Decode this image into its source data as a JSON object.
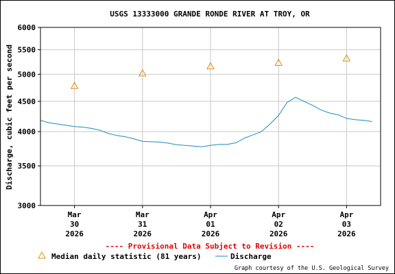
{
  "chart_data": {
    "type": "line",
    "title": "USGS 13333000 GRANDE RONDE RIVER AT TROY, OR",
    "ylabel": "Discharge, cubic feet per second",
    "xlabel": "",
    "y_scale": "log",
    "ylim": [
      3000,
      6000
    ],
    "y_ticks": [
      3000,
      3500,
      4000,
      4500,
      5000,
      5500,
      6000
    ],
    "x_range": [
      "2026-03-29T12:00",
      "2026-04-03T12:00"
    ],
    "x_ticks": [
      {
        "date": "2026-03-30T00:00",
        "label": [
          "Mar",
          "30",
          "2026"
        ]
      },
      {
        "date": "2026-03-31T00:00",
        "label": [
          "Mar",
          "31",
          "2026"
        ]
      },
      {
        "date": "2026-04-01T00:00",
        "label": [
          "Apr",
          "01",
          "2026"
        ]
      },
      {
        "date": "2026-04-02T00:00",
        "label": [
          "Apr",
          "02",
          "2026"
        ]
      },
      {
        "date": "2026-04-03T00:00",
        "label": [
          "Apr",
          "03",
          "2026"
        ]
      }
    ],
    "grid": true,
    "series": [
      {
        "name": "Discharge",
        "color": "#1a8ac0",
        "points": [
          [
            "2026-03-29T12:00",
            4180
          ],
          [
            "2026-03-29T15:00",
            4140
          ],
          [
            "2026-03-29T18:00",
            4120
          ],
          [
            "2026-03-29T21:00",
            4100
          ],
          [
            "2026-03-30T00:00",
            4080
          ],
          [
            "2026-03-30T03:00",
            4070
          ],
          [
            "2026-03-30T06:00",
            4050
          ],
          [
            "2026-03-30T09:00",
            4020
          ],
          [
            "2026-03-30T12:00",
            3970
          ],
          [
            "2026-03-30T15:00",
            3940
          ],
          [
            "2026-03-30T18:00",
            3920
          ],
          [
            "2026-03-30T21:00",
            3890
          ],
          [
            "2026-03-31T00:00",
            3850
          ],
          [
            "2026-03-31T03:00",
            3845
          ],
          [
            "2026-03-31T06:00",
            3840
          ],
          [
            "2026-03-31T09:00",
            3825
          ],
          [
            "2026-03-31T12:00",
            3800
          ],
          [
            "2026-03-31T15:00",
            3790
          ],
          [
            "2026-03-31T18:00",
            3780
          ],
          [
            "2026-03-31T21:00",
            3770
          ],
          [
            "2026-04-01T00:00",
            3790
          ],
          [
            "2026-04-01T03:00",
            3805
          ],
          [
            "2026-04-01T06:00",
            3805
          ],
          [
            "2026-04-01T09:00",
            3830
          ],
          [
            "2026-04-01T12:00",
            3900
          ],
          [
            "2026-04-01T15:00",
            3950
          ],
          [
            "2026-04-01T18:00",
            4000
          ],
          [
            "2026-04-01T21:00",
            4120
          ],
          [
            "2026-04-02T00:00",
            4260
          ],
          [
            "2026-04-02T03:00",
            4480
          ],
          [
            "2026-04-02T06:00",
            4570
          ],
          [
            "2026-04-02T09:00",
            4500
          ],
          [
            "2026-04-02T12:00",
            4430
          ],
          [
            "2026-04-02T15:00",
            4350
          ],
          [
            "2026-04-02T18:00",
            4300
          ],
          [
            "2026-04-02T21:00",
            4270
          ],
          [
            "2026-04-03T00:00",
            4210
          ],
          [
            "2026-04-03T03:00",
            4190
          ],
          [
            "2026-04-03T06:00",
            4180
          ],
          [
            "2026-04-03T09:00",
            4160
          ]
        ]
      },
      {
        "name": "Median daily statistic (81 years)",
        "marker": "triangle",
        "color": "#e09000",
        "points": [
          [
            "2026-03-30T00:00",
            4780
          ],
          [
            "2026-03-31T00:00",
            5020
          ],
          [
            "2026-04-01T00:00",
            5160
          ],
          [
            "2026-04-02T00:00",
            5230
          ],
          [
            "2026-04-03T00:00",
            5320
          ]
        ]
      }
    ],
    "provisional_note": "---- Provisional Data Subject to Revision ----",
    "legend": [
      {
        "label": "Median daily statistic (81 years)",
        "symbol": "triangle",
        "color": "#e09000"
      },
      {
        "label": "Discharge",
        "symbol": "line",
        "color": "#1a8ac0"
      }
    ],
    "legend_position": "bottom",
    "credit": "Graph courtesy of the U.S. Geological Survey"
  }
}
